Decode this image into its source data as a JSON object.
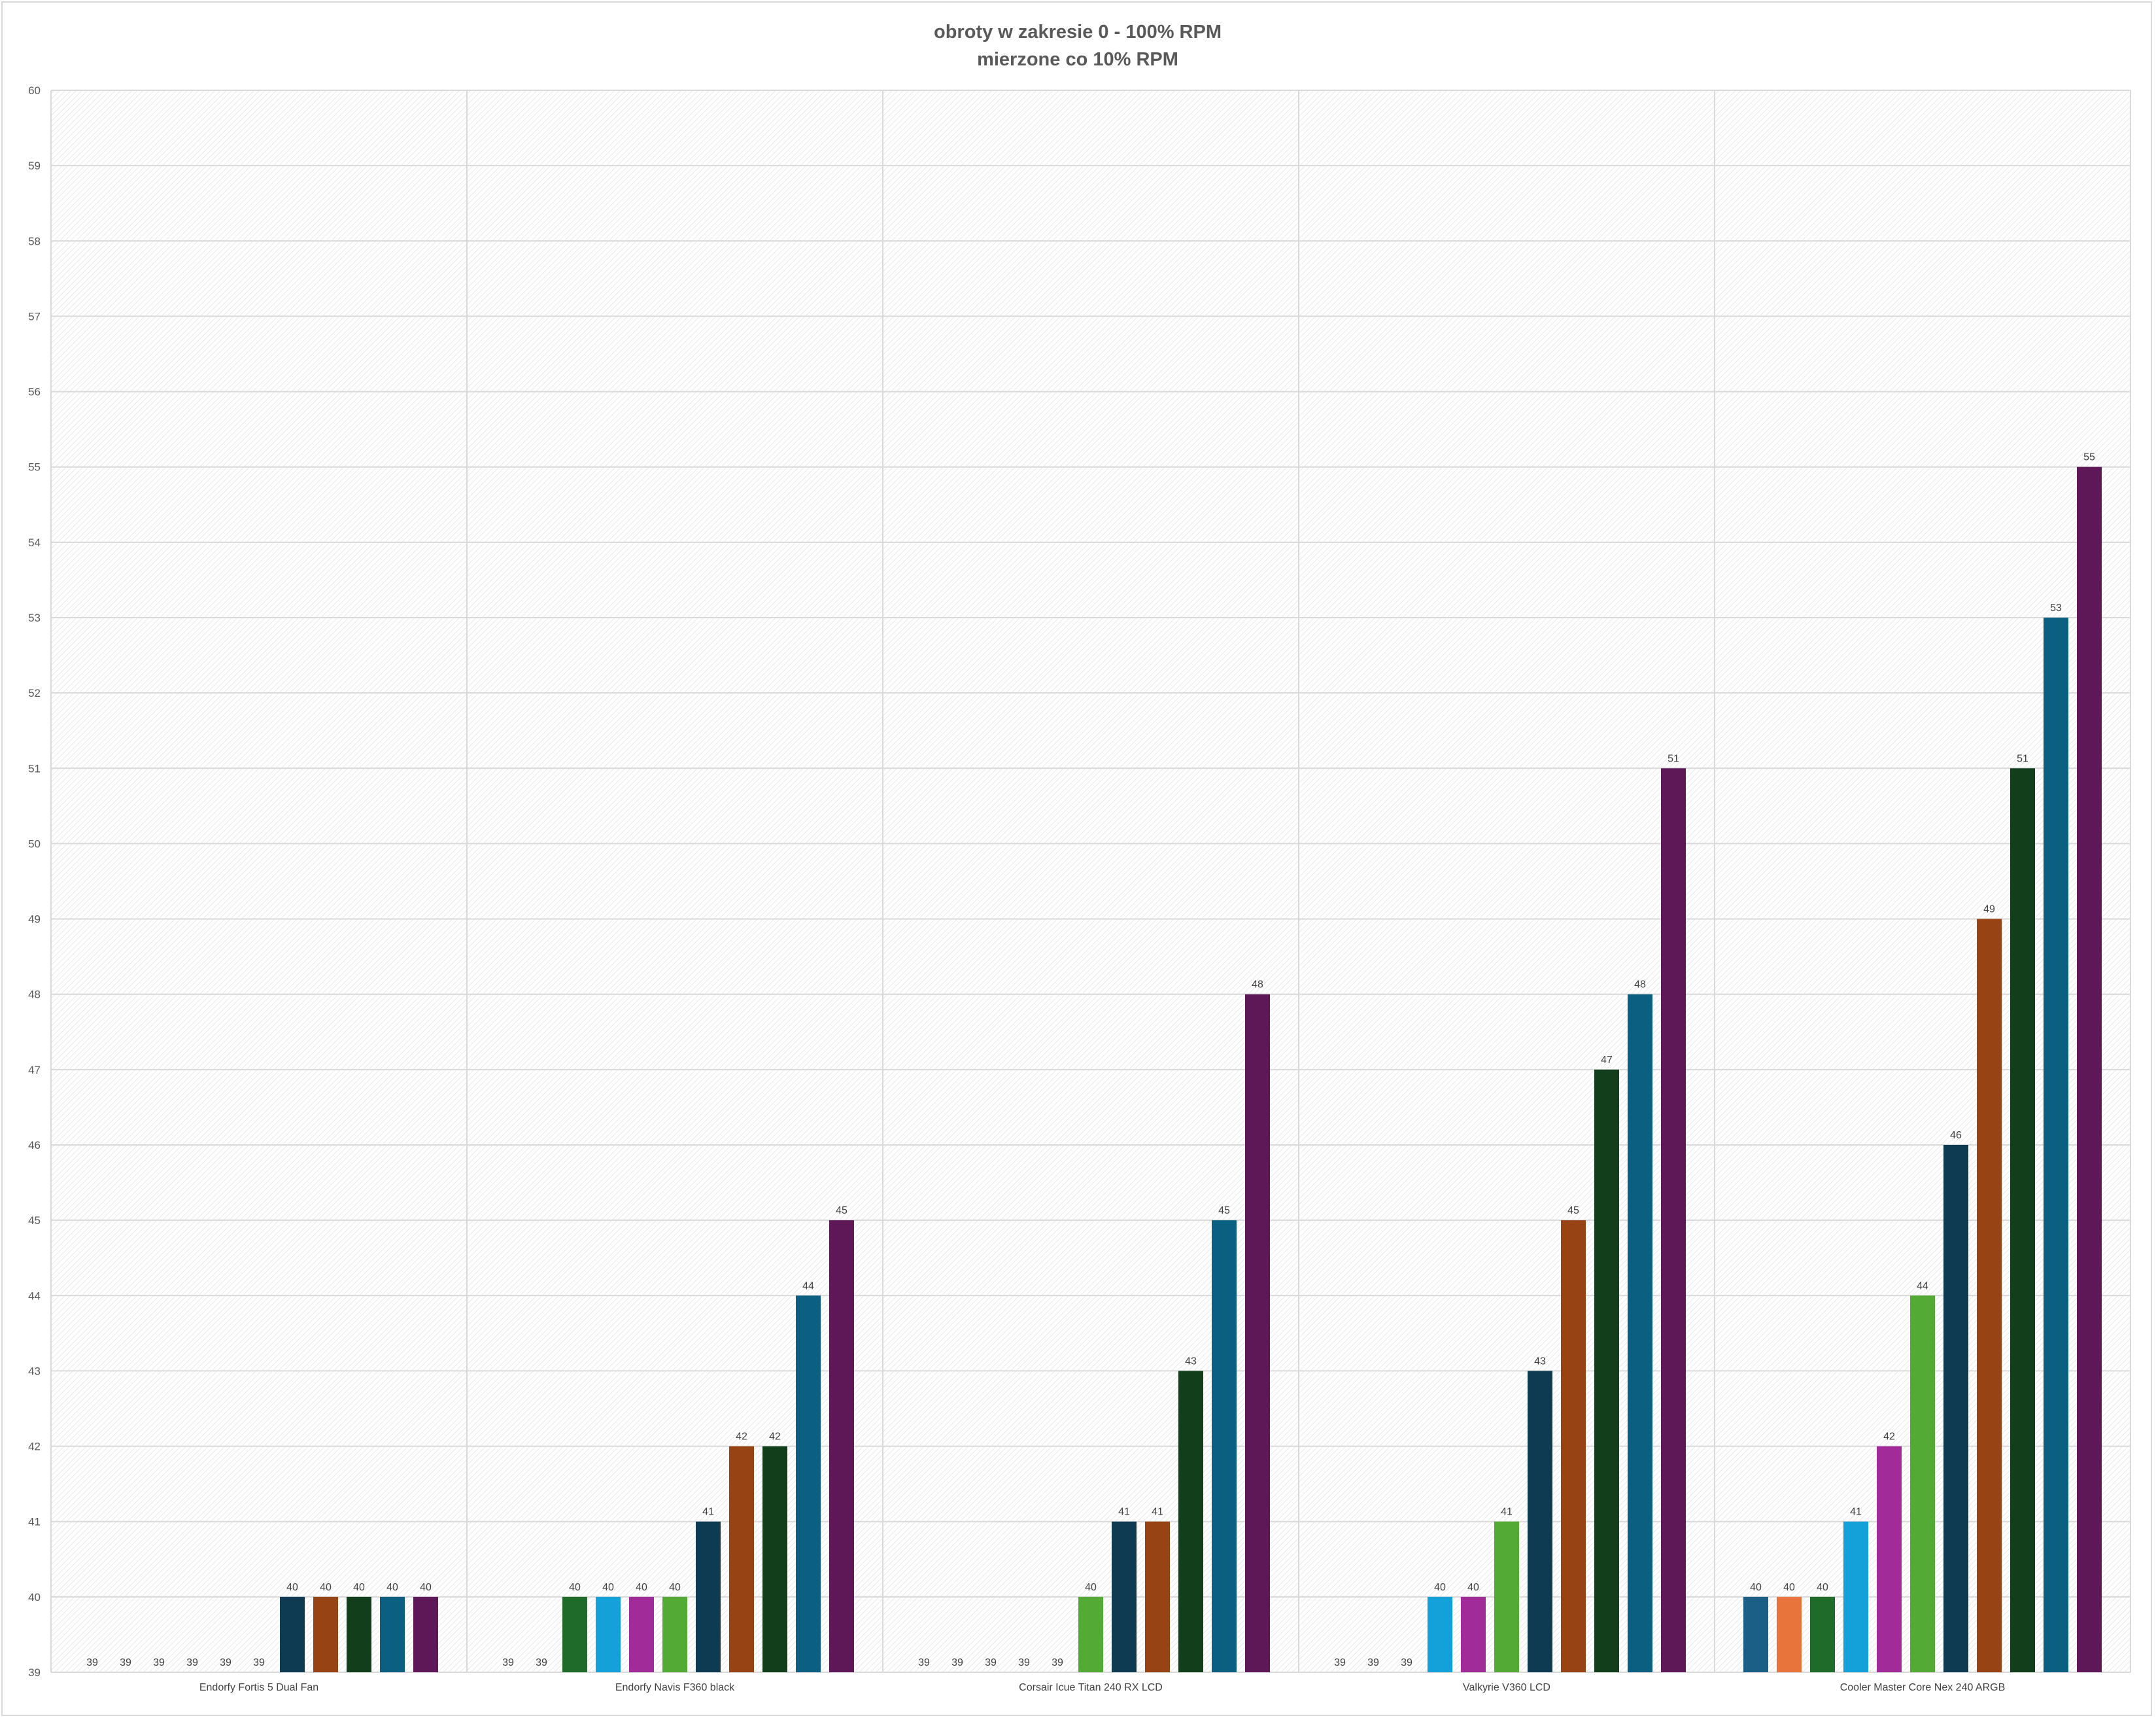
{
  "chart_data": {
    "type": "bar",
    "title": "obroty w zakresie 0 - 100% RPM",
    "subtitle": "mierzone co 10% RPM",
    "xlabel": "",
    "ylabel": "",
    "ylim": [
      39,
      60
    ],
    "yticks": [
      39,
      40,
      41,
      42,
      43,
      44,
      45,
      46,
      47,
      48,
      49,
      50,
      51,
      52,
      53,
      54,
      55,
      56,
      57,
      58,
      59,
      60
    ],
    "grid": true,
    "legend": "none",
    "data_labels": true,
    "categories": [
      "Endorfy Fortis 5 Dual Fan",
      "Endorfy Navis F360 black",
      "Corsair Icue Titan 240 RX LCD",
      "Valkyrie V360 LCD",
      "Cooler Master Core Nex 240 ARGB"
    ],
    "series": [
      {
        "color": "#1b5f86",
        "values": [
          39,
          39,
          39,
          39,
          40
        ]
      },
      {
        "color": "#e8743b",
        "values": [
          39,
          39,
          39,
          39,
          40
        ]
      },
      {
        "color": "#1e6b2a",
        "values": [
          39,
          40,
          39,
          39,
          40
        ]
      },
      {
        "color": "#14a0d8",
        "values": [
          39,
          40,
          39,
          40,
          41
        ]
      },
      {
        "color": "#a12b98",
        "values": [
          39,
          40,
          39,
          40,
          42
        ]
      },
      {
        "color": "#53ab35",
        "values": [
          39,
          40,
          40,
          41,
          44
        ]
      },
      {
        "color": "#0e3a52",
        "values": [
          40,
          41,
          41,
          43,
          46
        ]
      },
      {
        "color": "#974313",
        "values": [
          40,
          42,
          41,
          45,
          49
        ]
      },
      {
        "color": "#123e1c",
        "values": [
          40,
          42,
          43,
          47,
          51
        ]
      },
      {
        "color": "#0b6082",
        "values": [
          40,
          44,
          45,
          48,
          53
        ]
      },
      {
        "color": "#5e1858",
        "values": [
          40,
          45,
          48,
          51,
          55
        ]
      }
    ]
  }
}
